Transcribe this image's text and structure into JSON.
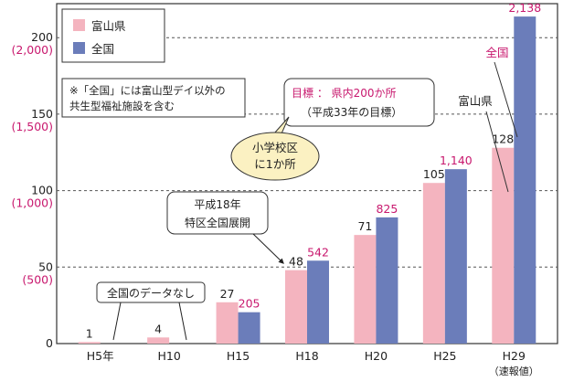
{
  "chart_data": {
    "type": "bar",
    "categories": [
      "H5年",
      "H10",
      "H15",
      "H18",
      "H20",
      "H25",
      "H29"
    ],
    "category_notes": [
      "",
      "",
      "",
      "",
      "",
      "",
      "（速報値）"
    ],
    "series": [
      {
        "name": "富山県",
        "values": [
          1,
          4,
          27,
          48,
          71,
          105,
          128
        ],
        "labels": [
          "1",
          "4",
          "27",
          "48",
          "71",
          "105",
          "128"
        ],
        "axis": "left"
      },
      {
        "name": "全国",
        "values": [
          null,
          null,
          205,
          542,
          825,
          1140,
          2138
        ],
        "labels": [
          "",
          "",
          "205",
          "542",
          "825",
          "1,140",
          "2,138"
        ],
        "axis": "right"
      }
    ],
    "left_axis": {
      "ylim": [
        0,
        200
      ],
      "ticks": [
        0,
        50,
        100,
        150,
        200
      ],
      "tick_labels": [
        "0",
        "50",
        "100",
        "150",
        "200"
      ]
    },
    "right_axis": {
      "ylim": [
        0,
        2000
      ],
      "ticks": [
        500,
        1000,
        1500,
        2000
      ],
      "tick_labels": [
        "(500)",
        "(1,000)",
        "(1,500)",
        "(2,000)"
      ]
    },
    "grid": true,
    "legend": {
      "position": "top-left",
      "entries": [
        "富山県",
        "全国"
      ]
    },
    "annotations": {
      "note_lines": [
        "※「全国」には富山型デイ以外の",
        "共生型福祉施設を含む"
      ],
      "goal_lines": [
        "目標 ： 県内200か所",
        "（平成33年の目標）"
      ],
      "bubble_lines": [
        "小学校区",
        "に1か所"
      ],
      "tokku_lines": [
        "平成18年",
        "特区全国展開"
      ],
      "nodata": "全国のデータなし",
      "label_zenkoku": "全国",
      "label_toyama": "富山県"
    }
  },
  "colors": {
    "toyama": "#f4b4bf",
    "zenkoku": "#6b7dba",
    "accent": "#c8186e",
    "bubble_fill": "#fbf1c2",
    "text": "#222222"
  }
}
